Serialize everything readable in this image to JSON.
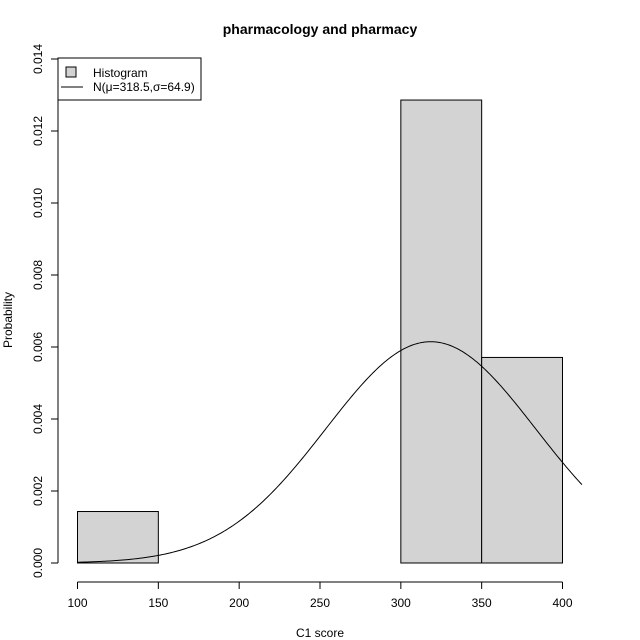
{
  "chart_data": {
    "type": "bar",
    "title": "pharmacology and pharmacy",
    "xlabel": "C1 score",
    "ylabel": "Probability",
    "xlim": [
      90,
      410
    ],
    "ylim": [
      0,
      0.014
    ],
    "x_ticks": [
      100,
      150,
      200,
      250,
      300,
      350,
      400
    ],
    "y_ticks": [
      "0.000",
      "0.002",
      "0.004",
      "0.006",
      "0.008",
      "0.010",
      "0.012",
      "0.014"
    ],
    "bins": [
      {
        "from": 100,
        "to": 150,
        "value": 0.00143
      },
      {
        "from": 150,
        "to": 200,
        "value": 0
      },
      {
        "from": 200,
        "to": 250,
        "value": 0
      },
      {
        "from": 250,
        "to": 300,
        "value": 0
      },
      {
        "from": 300,
        "to": 350,
        "value": 0.01286
      },
      {
        "from": 350,
        "to": 400,
        "value": 0.00571
      }
    ],
    "normal_curve": {
      "mu": 318.5,
      "sigma": 64.9
    },
    "bar_color": "#d3d3d3",
    "legend": {
      "position": "top-left",
      "entries": [
        "Histogram",
        "N(μ=318.5,σ=64.9)"
      ]
    }
  }
}
